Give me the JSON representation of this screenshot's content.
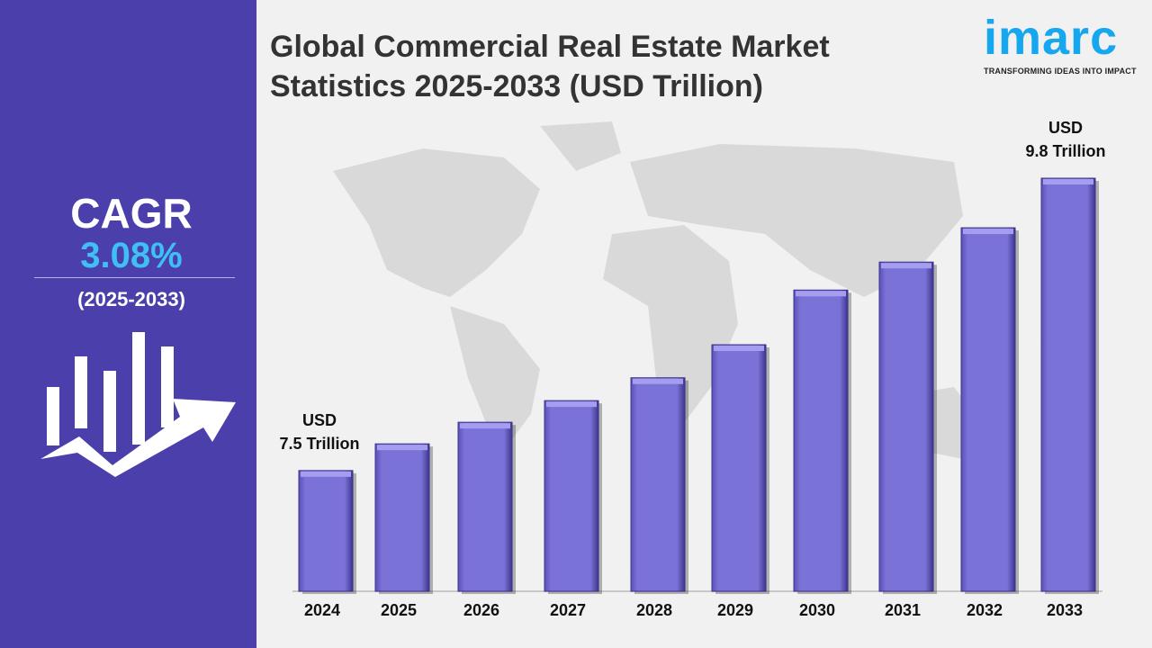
{
  "sidebar": {
    "cagr_label": "CAGR",
    "cagr_value": "3.08%",
    "period": "(2025-2033)",
    "icon": "growth-chart-arrow-icon"
  },
  "logo": {
    "word": "imarc",
    "tagline": "TRANSFORMING IDEAS INTO IMPACT",
    "color": "#17a7ef"
  },
  "chart_data": {
    "type": "bar",
    "title": "Global Commercial Real Estate Market Statistics 2025-2033 (USD Trillion)",
    "categories": [
      "2024",
      "2025",
      "2026",
      "2027",
      "2028",
      "2029",
      "2030",
      "2031",
      "2032",
      "2033"
    ],
    "values": [
      7.5,
      7.71,
      7.88,
      8.05,
      8.23,
      8.49,
      8.92,
      9.14,
      9.41,
      9.8
    ],
    "ylim": [
      6.55,
      10.05
    ],
    "grid": false,
    "bar_color": "#7b72d8",
    "annotations": [
      {
        "category": "2024",
        "line1": "USD",
        "line2": "7.5 Trillion"
      },
      {
        "category": "2033",
        "line1": "USD",
        "line2": "9.8 Trillion"
      }
    ]
  }
}
